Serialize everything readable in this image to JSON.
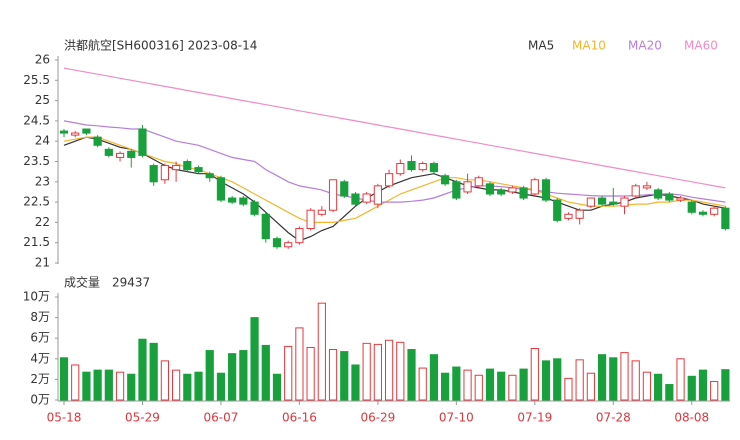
{
  "chart_data": {
    "type": "candlestick",
    "title": "洪都航空[SH600316] 2023-08-14",
    "categories": [
      "05-18",
      null,
      null,
      null,
      null,
      null,
      null,
      "05-29",
      null,
      null,
      null,
      null,
      null,
      null,
      "06-07",
      null,
      null,
      null,
      null,
      null,
      null,
      "06-16",
      null,
      null,
      null,
      null,
      null,
      null,
      "06-29",
      null,
      null,
      null,
      null,
      null,
      null,
      "07-10",
      null,
      null,
      null,
      null,
      null,
      null,
      "07-19",
      null,
      null,
      null,
      null,
      null,
      null,
      "07-28",
      null,
      null,
      null,
      null,
      null,
      null,
      "08-08",
      null,
      null,
      null
    ],
    "open": [
      24.25,
      24.15,
      24.3,
      24.1,
      23.8,
      23.6,
      23.75,
      24.3,
      23.4,
      23.05,
      23.3,
      23.5,
      23.35,
      23.2,
      23.1,
      22.6,
      22.6,
      22.5,
      22.2,
      21.6,
      21.4,
      21.5,
      21.85,
      22.2,
      22.3,
      23.0,
      22.7,
      22.5,
      22.45,
      22.9,
      23.2,
      23.5,
      23.3,
      23.45,
      23.15,
      23.0,
      22.75,
      22.9,
      22.95,
      22.8,
      22.75,
      22.85,
      22.7,
      23.05,
      22.55,
      22.1,
      22.1,
      22.4,
      22.6,
      22.5,
      22.4,
      22.65,
      22.85,
      22.8,
      22.7,
      22.55,
      22.5,
      22.25,
      22.2,
      22.35
    ],
    "high": [
      24.3,
      24.25,
      24.3,
      24.15,
      23.85,
      23.75,
      23.8,
      24.4,
      23.45,
      23.45,
      23.5,
      23.55,
      23.4,
      23.25,
      23.15,
      22.65,
      22.65,
      22.55,
      22.25,
      21.65,
      21.55,
      21.9,
      22.35,
      22.4,
      23.05,
      23.05,
      22.75,
      22.75,
      22.95,
      23.3,
      23.55,
      23.65,
      23.5,
      23.5,
      23.2,
      23.05,
      23.2,
      23.15,
      23.0,
      22.85,
      22.9,
      22.9,
      23.1,
      23.1,
      22.6,
      22.25,
      22.35,
      22.6,
      22.65,
      22.85,
      22.65,
      22.95,
      23.0,
      22.85,
      22.75,
      22.65,
      22.55,
      22.3,
      22.4,
      22.4
    ],
    "low": [
      24.1,
      24.1,
      24.15,
      23.85,
      23.6,
      23.5,
      23.35,
      23.6,
      22.9,
      22.95,
      23.0,
      23.25,
      23.2,
      23.0,
      22.5,
      22.45,
      22.4,
      22.15,
      21.5,
      21.35,
      21.35,
      21.45,
      21.8,
      22.15,
      22.25,
      22.6,
      22.4,
      22.45,
      22.35,
      22.85,
      23.15,
      23.25,
      23.25,
      23.2,
      22.9,
      22.55,
      22.7,
      22.85,
      22.65,
      22.65,
      22.7,
      22.55,
      22.65,
      22.5,
      22.0,
      22.05,
      21.95,
      22.35,
      22.4,
      22.4,
      22.2,
      22.6,
      22.8,
      22.55,
      22.5,
      22.5,
      22.2,
      22.15,
      22.15,
      21.8
    ],
    "close": [
      24.2,
      24.2,
      24.2,
      23.9,
      23.65,
      23.7,
      23.6,
      23.65,
      23.0,
      23.4,
      23.4,
      23.3,
      23.25,
      23.1,
      22.55,
      22.5,
      22.45,
      22.2,
      21.6,
      21.4,
      21.5,
      21.85,
      22.3,
      22.3,
      23.05,
      22.65,
      22.45,
      22.7,
      22.9,
      23.2,
      23.45,
      23.3,
      23.45,
      23.25,
      22.95,
      22.6,
      23.0,
      23.1,
      22.7,
      22.7,
      22.85,
      22.6,
      23.05,
      22.55,
      22.05,
      22.2,
      22.3,
      22.6,
      22.45,
      22.45,
      22.6,
      22.9,
      22.9,
      22.6,
      22.55,
      22.6,
      22.25,
      22.2,
      22.35,
      21.85
    ],
    "rise_color": "#e8383d",
    "fall_color": "#18a03c",
    "ylim": [
      21,
      26
    ],
    "yticks": [
      21,
      21.5,
      22,
      22.5,
      23,
      23.5,
      24,
      24.5,
      25,
      25.5,
      26
    ],
    "series": [
      {
        "name": "MA5",
        "color": "#333333",
        "values": [
          23.9,
          24.0,
          24.1,
          24.05,
          23.95,
          23.85,
          23.8,
          23.7,
          23.55,
          23.4,
          23.3,
          23.25,
          23.2,
          23.2,
          23.0,
          22.85,
          22.7,
          22.5,
          22.25,
          22.0,
          21.75,
          21.55,
          21.65,
          21.8,
          21.9,
          22.15,
          22.4,
          22.6,
          22.75,
          22.9,
          23.0,
          23.1,
          23.15,
          23.2,
          23.1,
          23.0,
          22.9,
          22.85,
          22.8,
          22.8,
          22.75,
          22.7,
          22.65,
          22.6,
          22.5,
          22.4,
          22.3,
          22.3,
          22.4,
          22.45,
          22.5,
          22.6,
          22.65,
          22.7,
          22.65,
          22.6,
          22.55,
          22.45,
          22.4,
          22.35
        ]
      },
      {
        "name": "MA10",
        "color": "#f5b52e",
        "values": [
          24.0,
          24.05,
          24.1,
          24.1,
          24.0,
          23.9,
          23.8,
          23.7,
          23.6,
          23.5,
          23.45,
          23.35,
          23.3,
          23.2,
          23.1,
          23.0,
          22.85,
          22.7,
          22.55,
          22.4,
          22.25,
          22.1,
          22.0,
          22.0,
          22.0,
          22.05,
          22.1,
          22.25,
          22.4,
          22.55,
          22.7,
          22.8,
          22.9,
          23.0,
          23.1,
          23.1,
          23.05,
          23.05,
          23.0,
          22.95,
          22.9,
          22.85,
          22.8,
          22.7,
          22.6,
          22.5,
          22.45,
          22.4,
          22.4,
          22.4,
          22.42,
          22.45,
          22.45,
          22.5,
          22.5,
          22.55,
          22.55,
          22.5,
          22.45,
          22.4
        ]
      },
      {
        "name": "MA20",
        "color": "#b47fdc",
        "values": [
          24.5,
          24.45,
          24.4,
          24.38,
          24.35,
          24.33,
          24.3,
          24.3,
          24.2,
          24.1,
          24.0,
          23.95,
          23.9,
          23.8,
          23.7,
          23.6,
          23.55,
          23.5,
          23.3,
          23.15,
          23.0,
          22.9,
          22.85,
          22.8,
          22.7,
          22.65,
          22.6,
          22.55,
          22.5,
          22.5,
          22.5,
          22.52,
          22.55,
          22.6,
          22.7,
          22.8,
          22.85,
          22.9,
          22.9,
          22.88,
          22.85,
          22.82,
          22.8,
          22.75,
          22.72,
          22.7,
          22.68,
          22.66,
          22.65,
          22.65,
          22.65,
          22.66,
          22.68,
          22.7,
          22.7,
          22.68,
          22.62,
          22.58,
          22.54,
          22.5
        ]
      },
      {
        "name": "MA60",
        "color": "#f08cc6",
        "values": [
          25.8,
          25.75,
          25.7,
          25.65,
          25.6,
          25.55,
          25.5,
          25.45,
          25.4,
          25.35,
          25.3,
          25.25,
          25.2,
          25.15,
          25.1,
          25.05,
          25.0,
          24.95,
          24.9,
          24.85,
          24.8,
          24.75,
          24.7,
          24.65,
          24.6,
          24.55,
          24.5,
          24.45,
          24.4,
          24.35,
          24.3,
          24.25,
          24.2,
          24.15,
          24.1,
          24.05,
          24.0,
          23.95,
          23.9,
          23.85,
          23.8,
          23.75,
          23.7,
          23.65,
          23.6,
          23.55,
          23.5,
          23.45,
          23.4,
          23.35,
          23.3,
          23.25,
          23.2,
          23.15,
          23.1,
          23.05,
          23.0,
          22.95,
          22.9,
          22.85
        ]
      }
    ],
    "volume": {
      "title": "成交量",
      "values": [
        41000,
        34000,
        27000,
        29000,
        29000,
        27000,
        25000,
        59000,
        55000,
        38000,
        29000,
        25000,
        27000,
        48000,
        26000,
        45000,
        48000,
        80000,
        53000,
        25000,
        52000,
        70000,
        51000,
        94000,
        49000,
        47000,
        34000,
        55000,
        54000,
        58000,
        56000,
        49000,
        31000,
        44000,
        26000,
        32000,
        29000,
        24000,
        30000,
        27000,
        24000,
        30000,
        50000,
        38000,
        40000,
        21000,
        39000,
        26000,
        44000,
        41000,
        46000,
        38000,
        27000,
        25000,
        15000,
        40000,
        23000,
        29000,
        18000,
        29437
      ],
      "ylim": [
        0,
        100000
      ],
      "yticks": [
        {
          "value": 0,
          "label": "0万"
        },
        {
          "value": 20000,
          "label": "2万"
        },
        {
          "value": 40000,
          "label": "4万"
        },
        {
          "value": 60000,
          "label": "6万"
        },
        {
          "value": 80000,
          "label": "8万"
        },
        {
          "value": 100000,
          "label": "10万"
        }
      ]
    }
  }
}
